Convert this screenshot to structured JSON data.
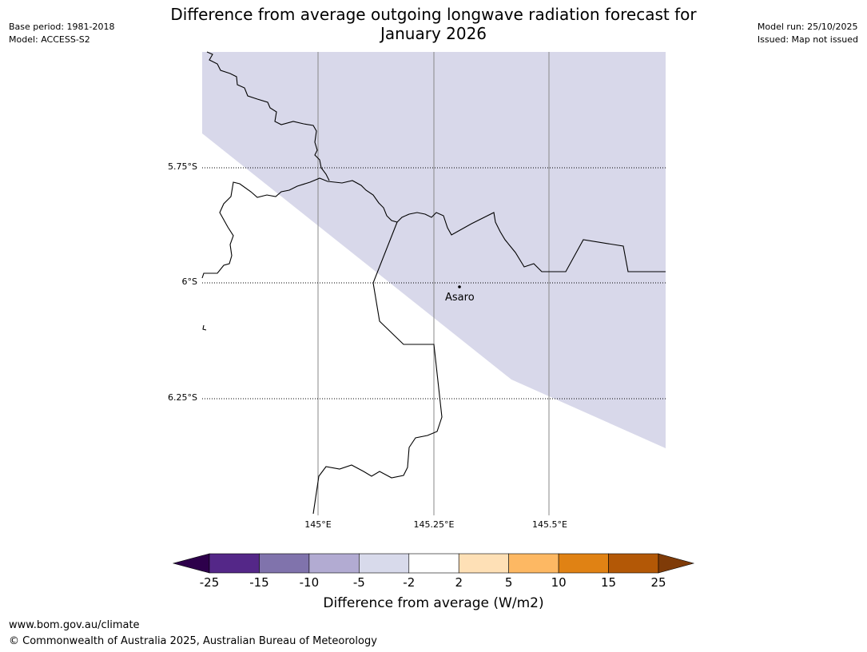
{
  "header": {
    "title_line1": "Difference from average outgoing longwave radiation forecast for",
    "title_line2": "January 2026",
    "base_period": "Base period: 1981-2018",
    "model": "Model: ACCESS-S2",
    "model_run": "Model run: 25/10/2025",
    "issued": "Issued: Map not issued"
  },
  "map": {
    "latitude_labels": [
      "5.75°S",
      "6°S",
      "6.25°S"
    ],
    "longitude_labels": [
      "145°E",
      "145.25°E",
      "145.5°E"
    ],
    "place": {
      "name": "Asaro"
    },
    "shaded_category": "-5 to -2",
    "shade_color": "#d8d8ea",
    "coast_color": "#000000",
    "grid_color": "#888888"
  },
  "colorbar": {
    "title": "Difference from average (W/m2)",
    "ticks": [
      "-25",
      "-15",
      "-10",
      "-5",
      "-2",
      "2",
      "5",
      "10",
      "15",
      "25"
    ],
    "colors": [
      "#2d004b",
      "#542788",
      "#8073ac",
      "#b2abd2",
      "#d8daeb",
      "#ffffff",
      "#fee0b6",
      "#fdb863",
      "#e08214",
      "#b35806",
      "#7f3b08"
    ]
  },
  "footer": {
    "url": "www.bom.gov.au/climate",
    "copyright": "© Commonwealth of Australia 2025, Australian Bureau of Meteorology"
  }
}
